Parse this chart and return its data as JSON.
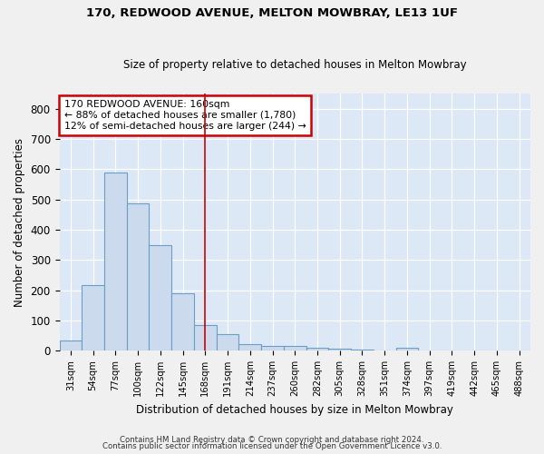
{
  "title": "170, REDWOOD AVENUE, MELTON MOWBRAY, LE13 1UF",
  "subtitle": "Size of property relative to detached houses in Melton Mowbray",
  "xlabel": "Distribution of detached houses by size in Melton Mowbray",
  "ylabel": "Number of detached properties",
  "categories": [
    "31sqm",
    "54sqm",
    "77sqm",
    "100sqm",
    "122sqm",
    "145sqm",
    "168sqm",
    "191sqm",
    "214sqm",
    "237sqm",
    "260sqm",
    "282sqm",
    "305sqm",
    "328sqm",
    "351sqm",
    "374sqm",
    "397sqm",
    "419sqm",
    "442sqm",
    "465sqm",
    "488sqm"
  ],
  "values": [
    32,
    218,
    590,
    487,
    350,
    190,
    85,
    55,
    22,
    15,
    14,
    9,
    5,
    2,
    0,
    8,
    0,
    0,
    0,
    0,
    0
  ],
  "bar_color": "#ccdaee",
  "bar_edge_color": "#6a9ec5",
  "highlight_index": 6,
  "highlight_line_color": "#cc0000",
  "annotation_line1": "170 REDWOOD AVENUE: 160sqm",
  "annotation_line2": "← 88% of detached houses are smaller (1,780)",
  "annotation_line3": "12% of semi-detached houses are larger (244) →",
  "annotation_box_color": "#ffffff",
  "annotation_box_edge_color": "#cc0000",
  "ylim": [
    0,
    850
  ],
  "yticks": [
    0,
    100,
    200,
    300,
    400,
    500,
    600,
    700,
    800
  ],
  "background_color": "#dce8f5",
  "grid_color": "#ffffff",
  "fig_background": "#f0f0f0",
  "footer_line1": "Contains HM Land Registry data © Crown copyright and database right 2024.",
  "footer_line2": "Contains public sector information licensed under the Open Government Licence v3.0."
}
